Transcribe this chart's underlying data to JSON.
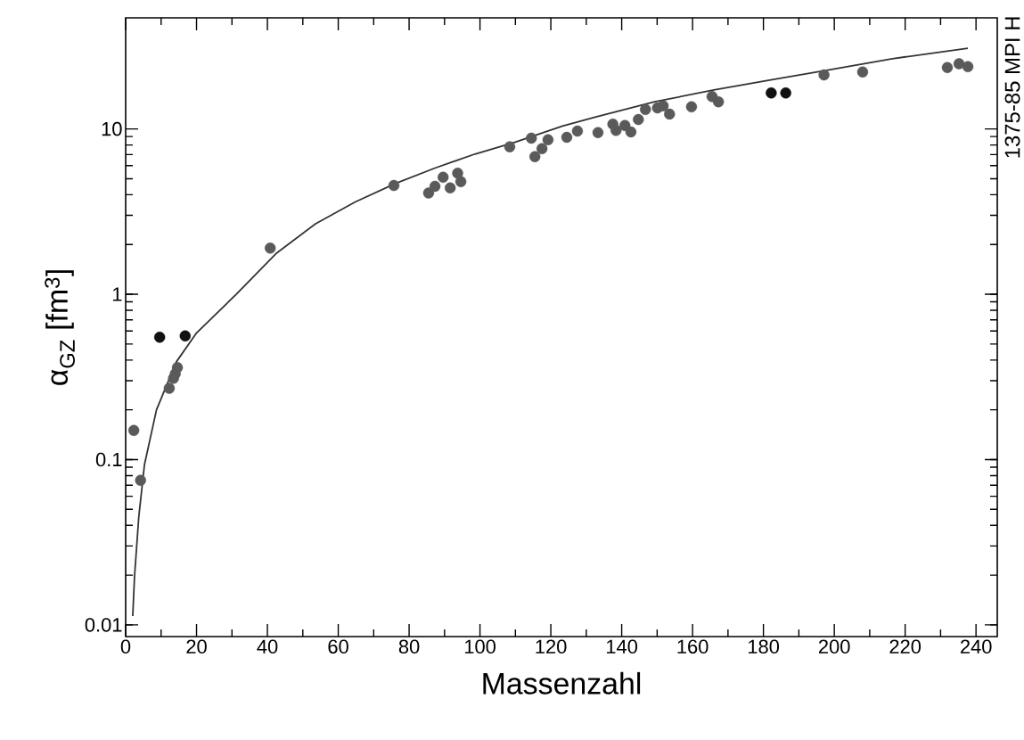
{
  "chart_data": {
    "type": "scatter",
    "xlabel": "Massenzahl",
    "ylabel": "α$_{GZ}$ [fm$^{3}$]",
    "log": "y",
    "xlim": [
      0,
      246
    ],
    "ylim": [
      0.0085,
      47
    ],
    "xticks": [
      0,
      20,
      40,
      60,
      80,
      100,
      120,
      140,
      160,
      180,
      200,
      220,
      240
    ],
    "yticks": [
      {
        "value": 0.01,
        "label": "0.01"
      },
      {
        "value": 0.1,
        "label": "0.1"
      },
      {
        "value": 1,
        "label": "1"
      },
      {
        "value": 10,
        "label": "10"
      }
    ],
    "annotations": [
      "1375-85 MPI H"
    ],
    "series": [
      {
        "color": "#5a5a5a",
        "marker": "circle",
        "x": [
          2.3,
          4.2,
          12.3,
          13.5,
          14,
          14.6,
          40.8,
          75.7,
          85.5,
          87.3,
          89.6,
          91.6,
          93.7,
          94.6,
          108.4,
          114.5,
          115.5,
          117.5,
          119.2,
          124.5,
          127.5,
          133.3,
          137.5,
          138.4,
          140.9,
          142.6,
          144.7,
          146.7,
          150.1,
          151.7,
          153.5,
          159.7,
          165.5,
          167.3,
          197.1,
          208,
          231.9,
          235.2,
          237.7
        ],
        "values": [
          0.15,
          0.075,
          0.27,
          0.31,
          0.33,
          0.36,
          1.9,
          4.55,
          4.1,
          4.5,
          5.1,
          4.4,
          5.4,
          4.8,
          7.8,
          8.8,
          6.8,
          7.6,
          8.6,
          8.9,
          9.7,
          9.5,
          10.7,
          9.8,
          10.5,
          9.6,
          11.4,
          13.1,
          13.4,
          13.8,
          12.3,
          13.6,
          15.7,
          14.6,
          21.2,
          22.1,
          23.5,
          24.8,
          23.8
        ]
      },
      {
        "color": "#111111",
        "marker": "circle",
        "x": [
          9.6,
          16.8,
          182.2,
          186.3
        ],
        "values": [
          0.55,
          0.56,
          16.5,
          16.5
        ]
      },
      {
        "type": "line",
        "color": "#333333",
        "marker": "none",
        "x": [
          2,
          2.5,
          3.7,
          5.3,
          8.7,
          14.3,
          19.9,
          31.2,
          42.4,
          53.6,
          64.8,
          76.1,
          87.3,
          98.6,
          109.8,
          123.3,
          132.5,
          149.3,
          166,
          182.8,
          199.6,
          216.4,
          237.7
        ],
        "values": [
          0.0113,
          0.0196,
          0.045,
          0.093,
          0.2,
          0.39,
          0.58,
          1.0,
          1.76,
          2.67,
          3.62,
          4.67,
          5.8,
          7.05,
          8.3,
          10.4,
          11.8,
          14.6,
          17.2,
          19.9,
          23,
          26.6,
          30.8
        ]
      }
    ]
  }
}
